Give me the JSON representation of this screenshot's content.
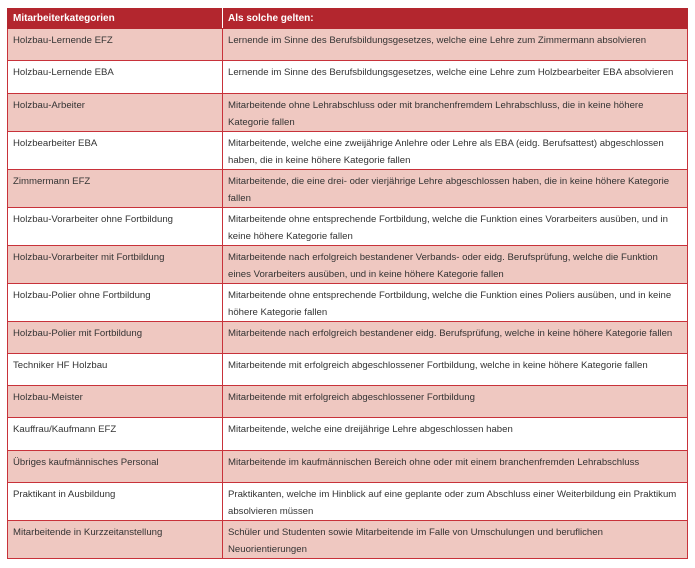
{
  "colors": {
    "header": "#b3262e",
    "row_alt": "#efc8c1",
    "border": "#c8323a"
  },
  "table": {
    "headers": [
      "Mitarbeiterkategorien",
      "Als solche gelten:"
    ],
    "rows": [
      [
        "Holzbau-Lernende EFZ",
        "Lernende im Sinne des Berufsbildungsgesetzes, welche eine Lehre zum Zimmermann absolvieren"
      ],
      [
        "Holzbau-Lernende EBA",
        "Lernende im Sinne des Berufsbildungsgesetzes, welche eine Lehre zum Holzbearbeiter EBA absolvieren"
      ],
      [
        "Holzbau-Arbeiter",
        "Mitarbeitende ohne Lehrabschluss oder mit branchenfremdem Lehrabschluss, die in keine höhere Kategorie fallen"
      ],
      [
        "Holzbearbeiter EBA",
        "Mitarbeitende, welche eine zweijährige Anlehre oder Lehre als EBA (eidg. Berufsattest) abgeschlossen haben, die in keine höhere Kategorie fallen"
      ],
      [
        "Zimmermann EFZ",
        "Mitarbeitende, die eine drei- oder vierjährige Lehre abgeschlossen haben, die in keine höhere Kategorie fallen"
      ],
      [
        "Holzbau-Vorarbeiter ohne Fortbildung",
        "Mitarbeitende ohne entsprechende Fortbildung, welche die Funktion eines Vorarbeiters ausüben, und in keine höhere Kategorie fallen"
      ],
      [
        "Holzbau-Vorarbeiter mit Fortbildung",
        "Mitarbeitende nach erfolgreich bestandener Verbands- oder eidg. Berufsprüfung, welche die Funktion eines Vorarbeiters ausüben, und in keine höhere Kategorie fallen"
      ],
      [
        "Holzbau-Polier ohne Fortbildung",
        "Mitarbeitende ohne entsprechende Fortbildung, welche die Funktion eines Poliers ausüben, und in keine höhere Kategorie fallen"
      ],
      [
        "Holzbau-Polier mit Fortbildung",
        "Mitarbeitende nach erfolgreich bestandener eidg. Berufsprüfung, welche in keine höhere Kategorie fallen"
      ],
      [
        "Techniker HF Holzbau",
        "Mitarbeitende mit erfolgreich abgeschlossener Fortbildung, welche in keine höhere Kategorie fallen"
      ],
      [
        "Holzbau-Meister",
        "Mitarbeitende mit erfolgreich abgeschlossener Fortbildung"
      ],
      [
        "Kauffrau/Kaufmann EFZ",
        "Mitarbeitende, welche eine dreijährige Lehre abgeschlossen haben"
      ],
      [
        "Übriges kaufmännisches Personal",
        "Mitarbeitende im kaufmännischen Bereich ohne oder mit einem branchenfremden Lehrabschluss"
      ],
      [
        "Praktikant in Ausbildung",
        "Praktikanten, welche im Hinblick auf eine geplante oder zum Abschluss einer Weiterbildung ein Praktikum absolvieren müssen"
      ],
      [
        "Mitarbeitende in Kurzzeitanstellung",
        "Schüler und Studenten sowie Mitarbeitende im Falle von Umschulungen und beruflichen Neuorientierungen"
      ]
    ]
  }
}
